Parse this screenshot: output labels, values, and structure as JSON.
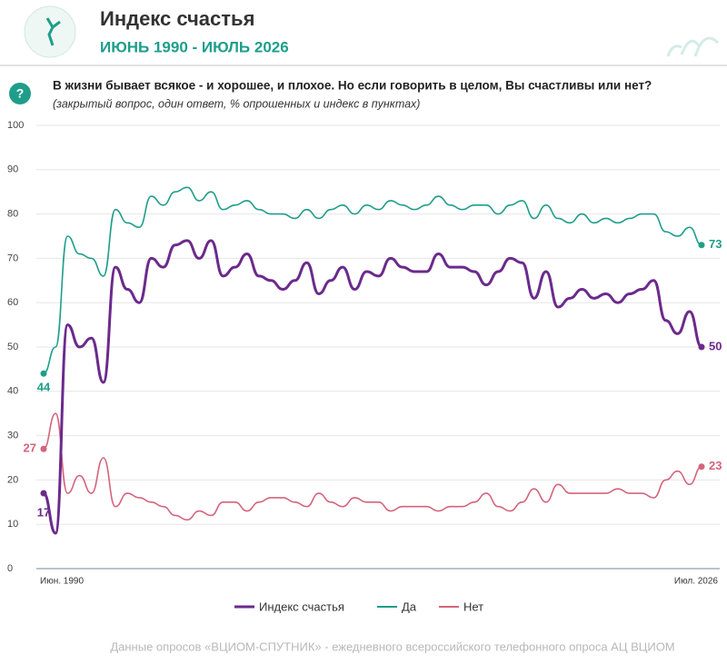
{
  "chart_data": {
    "type": "line",
    "title": "Индекс счастья",
    "subtitle": "ИЮНЬ 1990 - ИЮЛЬ 2026",
    "question": "В жизни бывает всякое - и хорошее, и плохое. Но если говорить в целом, Вы счастливы  или нет?",
    "note": "(закрытый вопрос, один ответ, % опрошенных и индекс в пунктах)",
    "source": "Данные опросов «ВЦИОМ-СПУТНИК» - ежедневного всероссийского телефонного опроса АЦ ВЦИОМ",
    "categories": [
      "Июн. 1990",
      null,
      null,
      null,
      null,
      null,
      null,
      null,
      null,
      null,
      null,
      null,
      null,
      null,
      null,
      null,
      null,
      null,
      null,
      null,
      null,
      null,
      null,
      null,
      null,
      null,
      null,
      null,
      null,
      null,
      null,
      null,
      null,
      null,
      null,
      null,
      null,
      null,
      null,
      null,
      null,
      null,
      null,
      null,
      null,
      null,
      null,
      null,
      null,
      null,
      null,
      null,
      null,
      null,
      null,
      "Июл. 2026"
    ],
    "series": [
      {
        "name": "Индекс счастья",
        "color": "#6b2a8c",
        "values": [
          17,
          8,
          55,
          50,
          52,
          42,
          68,
          63,
          60,
          70,
          68,
          73,
          74,
          70,
          74,
          66,
          68,
          71,
          66,
          65,
          63,
          65,
          69,
          62,
          65,
          68,
          63,
          67,
          66,
          70,
          68,
          67,
          67,
          71,
          68,
          68,
          67,
          64,
          67,
          70,
          69,
          61,
          67,
          59,
          61,
          63,
          61,
          62,
          60,
          62,
          63,
          65,
          56,
          53,
          58,
          50
        ]
      },
      {
        "name": "Да",
        "color": "#1e9e8a",
        "values": [
          44,
          50,
          75,
          71,
          70,
          66,
          81,
          78,
          77,
          84,
          82,
          85,
          86,
          83,
          85,
          81,
          82,
          83,
          81,
          80,
          80,
          79,
          81,
          79,
          81,
          82,
          80,
          82,
          81,
          83,
          82,
          81,
          82,
          84,
          82,
          81,
          82,
          82,
          80,
          82,
          83,
          79,
          82,
          79,
          78,
          80,
          78,
          79,
          78,
          79,
          80,
          80,
          76,
          75,
          77,
          73
        ]
      },
      {
        "name": "Нет",
        "color": "#d4647c",
        "values": [
          27,
          35,
          17,
          21,
          17,
          25,
          14,
          17,
          16,
          15,
          14,
          12,
          11,
          13,
          12,
          15,
          15,
          13,
          15,
          16,
          16,
          15,
          14,
          17,
          15,
          14,
          16,
          15,
          15,
          13,
          14,
          14,
          14,
          13,
          14,
          14,
          15,
          17,
          14,
          13,
          15,
          18,
          15,
          19,
          17,
          17,
          17,
          17,
          18,
          17,
          17,
          16,
          20,
          22,
          19,
          23
        ]
      }
    ],
    "ylim": [
      0,
      100
    ],
    "yticks": [
      0,
      10,
      20,
      30,
      40,
      50,
      60,
      70,
      80,
      90,
      100
    ],
    "grid": true
  }
}
